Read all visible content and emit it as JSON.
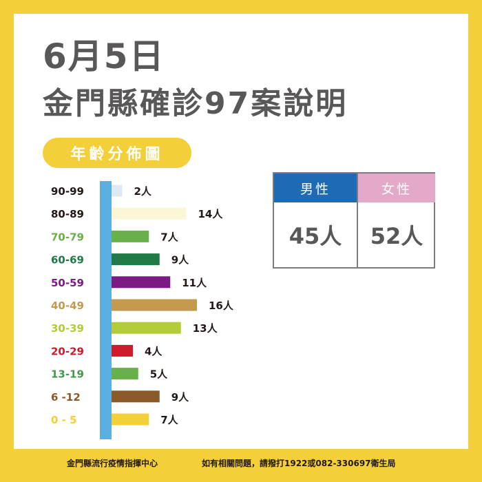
{
  "header": {
    "date": "6月5日",
    "title": "金門縣確診97案說明"
  },
  "section_label": "年齡分佈圖",
  "gender": {
    "male_label": "男性",
    "male_value": "45人",
    "female_label": "女性",
    "female_value": "52人"
  },
  "footer": {
    "left": "金門縣流行疫情指揮中心",
    "right": "如有相關問題，請撥打1922或082-330697衛生局"
  },
  "colors": {
    "background": "#f3d03a",
    "axis": "#5aaee0",
    "title": "#595757"
  },
  "chart_data": {
    "type": "bar",
    "orientation": "horizontal",
    "categories": [
      "90-99",
      "80-89",
      "70-79",
      "60-69",
      "50-59",
      "40-49",
      "30-39",
      "20-29",
      "13-19",
      "6 -12",
      "0 - 5"
    ],
    "values": [
      2,
      14,
      7,
      9,
      11,
      16,
      13,
      4,
      5,
      9,
      7
    ],
    "data_labels": [
      "2人",
      "14人",
      "7人",
      "9人",
      "11人",
      "16人",
      "13人",
      "4人",
      "5人",
      "9人",
      "7人"
    ],
    "category_colors": [
      "#dde9f6",
      "#fbf6d6",
      "#68b04a",
      "#1f7a45",
      "#7d1b84",
      "#c49a4e",
      "#b2cc3a",
      "#cf1a2b",
      "#68b04a",
      "#8a5a2b",
      "#f3d03a"
    ],
    "label_colors": [
      "#231815",
      "#231815",
      "#68b04a",
      "#1f7a45",
      "#7d1b84",
      "#c49a4e",
      "#b2cc3a",
      "#cf1a2b",
      "#3f9a4a",
      "#8a5a2b",
      "#f3d03a"
    ],
    "title": "年齡分佈圖",
    "xlabel": "",
    "ylabel": "",
    "xlim": [
      0,
      16
    ]
  }
}
